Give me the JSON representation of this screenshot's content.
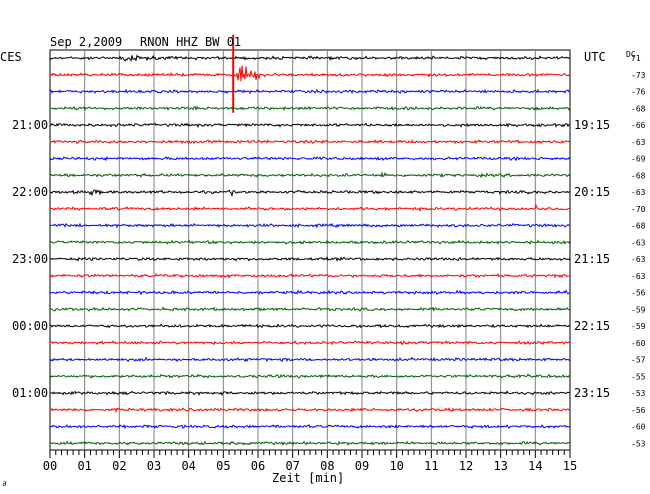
{
  "header": {
    "date": "Sep 2,2009",
    "station": "RNON HHZ BW 01",
    "left_zone": "CES",
    "right_zone": "UTC",
    "dc_label": "DC",
    "corner_mark": "∂"
  },
  "chart_data": {
    "type": "line",
    "xlabel": "Zeit [min]",
    "xlim": [
      0,
      15
    ],
    "x_ticks": [
      "00",
      "01",
      "02",
      "03",
      "04",
      "05",
      "06",
      "07",
      "08",
      "09",
      "10",
      "11",
      "12",
      "13",
      "14",
      "15"
    ],
    "trace_count": 24,
    "trace_colors": [
      "#000000",
      "#ff0000",
      "#0000ff",
      "#006400"
    ],
    "left_hour_labels": [
      {
        "trace": 4,
        "text": "21:00"
      },
      {
        "trace": 8,
        "text": "22:00"
      },
      {
        "trace": 12,
        "text": "23:00"
      },
      {
        "trace": 16,
        "text": "00:00"
      },
      {
        "trace": 20,
        "text": "01:00"
      }
    ],
    "right_hour_labels": [
      {
        "trace": 4,
        "text": "19:15"
      },
      {
        "trace": 8,
        "text": "20:15"
      },
      {
        "trace": 12,
        "text": "21:15"
      },
      {
        "trace": 16,
        "text": "22:15"
      },
      {
        "trace": 20,
        "text": "23:15"
      }
    ],
    "dc_offsets": [
      "71",
      "-73",
      "-76",
      "-68",
      "-66",
      "-63",
      "-69",
      "-68",
      "-63",
      "-70",
      "-68",
      "-63",
      "-63",
      "-63",
      "-56",
      "-59",
      "-59",
      "-60",
      "-57",
      "-55",
      "-53",
      "-56",
      "-60",
      "-53"
    ],
    "events": [
      {
        "trace": 0,
        "minute": 2.0,
        "amplitude": "small",
        "duration_min": 1.3
      },
      {
        "trace": 1,
        "minute": 5.4,
        "amplitude": "large",
        "duration_min": 1.2
      },
      {
        "trace": 8,
        "minute": 1.1,
        "amplitude": "small",
        "duration_min": 0.5
      },
      {
        "trace": 8,
        "minute": 5.2,
        "amplitude": "small",
        "duration_min": 0.2
      },
      {
        "trace": 8,
        "minute": 10.3,
        "amplitude": "small",
        "duration_min": 0.1
      },
      {
        "trace": 9,
        "minute": 11.6,
        "amplitude": "small",
        "duration_min": 0.1
      },
      {
        "trace": 9,
        "minute": 14.0,
        "amplitude": "small",
        "duration_min": 0.1
      },
      {
        "trace": 7,
        "minute": 9.5,
        "amplitude": "small",
        "duration_min": 0.4
      }
    ],
    "grid": true
  }
}
